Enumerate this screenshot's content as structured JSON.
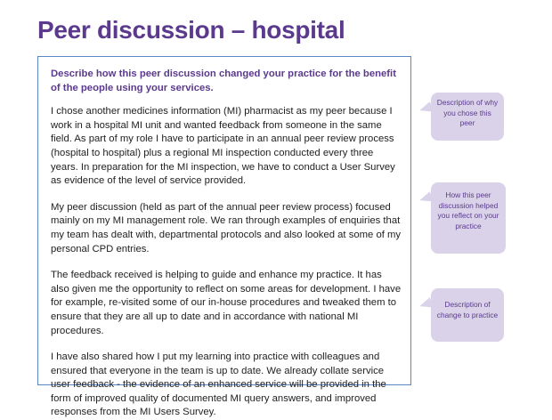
{
  "title": "Peer discussion – hospital",
  "question": "Describe how this peer discussion changed your practice for the benefit of the people using your services.",
  "paragraphs": [
    "I chose another medicines information (MI) pharmacist as my peer because I work in a hospital MI unit and wanted feedback from someone in the same field. As part of my role I have to participate in an annual peer review process (hospital to hospital) plus a regional MI inspection conducted every three years. In preparation for the MI inspection, we have to conduct a User Survey as evidence of the level of service provided.",
    "My peer discussion (held as part of the annual peer review process) focused mainly on my MI management role. We ran through examples of enquiries that my team has dealt with, departmental protocols and also looked at some of my personal CPD entries.",
    "The feedback received is helping to guide and enhance my practice. It has also given me the opportunity to reflect on some areas for development. I have for example, re-visited some of our in-house procedures and tweaked them to ensure that they are all up to date and in accordance with national MI procedures.",
    "I have also shared how I put my learning into practice with colleagues and ensured that everyone in the team is up to date.  We already collate service user feedback - the evidence of an enhanced service will be provided in the form of improved quality of documented MI query answers, and improved responses from the MI Users Survey."
  ],
  "callouts": [
    "Description of why you chose this peer",
    "How this peer discussion helped you reflect on your practice",
    "Description of change to practice"
  ]
}
